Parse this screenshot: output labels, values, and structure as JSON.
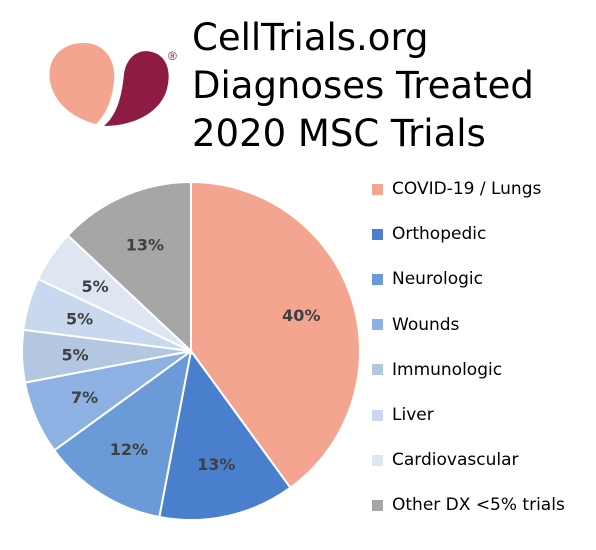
{
  "title_lines": [
    "CellTrials.org",
    "Diagnoses Treated",
    "2020 MSC Trials"
  ],
  "logo": {
    "registered_mark": "®",
    "colors": [
      "#F4A590",
      "#8E1B44"
    ]
  },
  "chart_data": {
    "type": "pie",
    "title": "CellTrials.org Diagnoses Treated 2020 MSC Trials",
    "legend_position": "right",
    "start_angle_deg": 0,
    "direction": "clockwise",
    "slices": [
      {
        "label": "COVID-19 / Lungs",
        "value": 40,
        "display": "40%",
        "color": "#F4A590"
      },
      {
        "label": "Orthopedic",
        "value": 13,
        "display": "13%",
        "color": "#4A7FCE"
      },
      {
        "label": "Neurologic",
        "value": 12,
        "display": "12%",
        "color": "#6B9AD9"
      },
      {
        "label": "Wounds",
        "value": 7,
        "display": "7%",
        "color": "#8DB1E2"
      },
      {
        "label": "Immunologic",
        "value": 5,
        "display": "5%",
        "color": "#B4C7E1"
      },
      {
        "label": "Liver",
        "value": 5,
        "display": "5%",
        "color": "#C9D8EE"
      },
      {
        "label": "Cardiovascular",
        "value": 5,
        "display": "5%",
        "color": "#DEE6F1"
      },
      {
        "label": "Other DX <5% trials",
        "value": 13,
        "display": "13%",
        "color": "#A6A6A6"
      }
    ]
  }
}
